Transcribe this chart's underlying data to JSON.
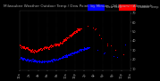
{
  "bg_color": "#000000",
  "plot_bg_color": "#000000",
  "grid_color": "#333333",
  "temp_color": "#ff0000",
  "dew_color": "#0000ff",
  "legend_temp_label": "Outdoor Temp",
  "legend_dew_label": "Dew Point",
  "ylim": [
    8,
    72
  ],
  "yticks": [
    10,
    20,
    30,
    40,
    50,
    60,
    70
  ],
  "xlim": [
    0,
    1440
  ],
  "title_fontsize": 3.0,
  "tick_fontsize": 2.5,
  "legend_fontsize": 2.4,
  "marker_size": 0.5,
  "temp_x": [
    0,
    30,
    60,
    90,
    120,
    150,
    180,
    210,
    240,
    270,
    300,
    330,
    360,
    390,
    420,
    450,
    480,
    510,
    540,
    570,
    600,
    630,
    660,
    690,
    720,
    750,
    780,
    810,
    840,
    870,
    900,
    930,
    960,
    990,
    1020,
    1050,
    1080,
    1110,
    1140,
    1170,
    1200,
    1230,
    1260,
    1290,
    1320,
    1350,
    1380,
    1410,
    1440
  ],
  "temp_y": [
    35,
    34,
    33,
    32,
    31,
    30,
    29,
    29,
    30,
    31,
    32,
    33,
    33,
    34,
    35,
    36,
    36,
    37,
    38,
    40,
    42,
    44,
    46,
    48,
    50,
    52,
    53,
    54,
    56,
    57,
    58,
    57,
    55,
    52,
    48,
    44,
    40,
    38,
    36,
    34,
    32,
    30,
    28,
    27,
    26,
    25,
    48,
    55,
    52
  ],
  "dew_x": [
    0,
    30,
    60,
    90,
    120,
    150,
    180,
    210,
    240,
    270,
    300,
    330,
    360,
    390,
    420,
    450,
    480,
    510,
    540,
    570,
    600,
    630,
    660,
    690,
    720,
    750,
    780,
    810,
    840,
    870,
    900,
    930,
    960,
    990,
    1020,
    1050,
    1080,
    1110,
    1140,
    1170,
    1200,
    1230,
    1260,
    1290,
    1320,
    1350,
    1380,
    1410,
    1440
  ],
  "dew_y": [
    22,
    21,
    21,
    20,
    20,
    19,
    19,
    18,
    18,
    18,
    18,
    18,
    18,
    19,
    19,
    20,
    20,
    21,
    22,
    23,
    24,
    25,
    26,
    27,
    28,
    29,
    30,
    31,
    32,
    32,
    33,
    33,
    32,
    31,
    30,
    29,
    28,
    27,
    26,
    25,
    24,
    23,
    22,
    22,
    36,
    36,
    37,
    36,
    35
  ],
  "xtick_positions": [
    0,
    120,
    240,
    360,
    480,
    600,
    720,
    840,
    960,
    1080,
    1200,
    1320,
    1440
  ],
  "xtick_labels": [
    "12a",
    "2a",
    "4a",
    "6a",
    "8a",
    "10a",
    "12p",
    "2p",
    "4p",
    "6p",
    "8p",
    "10p",
    "12a"
  ]
}
